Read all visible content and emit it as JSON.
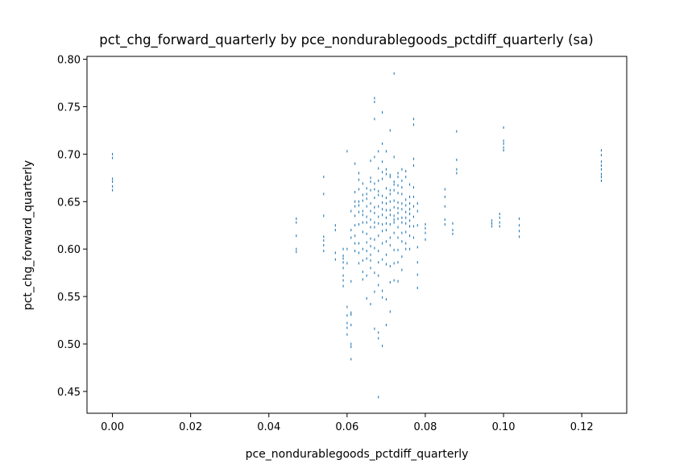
{
  "chart_data": {
    "type": "scatter",
    "title": "pct_chg_forward_quarterly by pce_nondurablegoods_pctdiff_quarterly (sa)",
    "xlabel": "pce_nondurablegoods_pctdiff_quarterly",
    "ylabel": "pct_chg_forward_quarterly",
    "xlim": [
      -0.0065,
      0.1315
    ],
    "ylim": [
      0.427,
      0.803
    ],
    "xticks": [
      0.0,
      0.02,
      0.04,
      0.06,
      0.08,
      0.1,
      0.12
    ],
    "xtick_labels": [
      "0.00",
      "0.02",
      "0.04",
      "0.06",
      "0.08",
      "0.10",
      "0.12"
    ],
    "yticks": [
      0.45,
      0.5,
      0.55,
      0.6,
      0.65,
      0.7,
      0.75,
      0.8
    ],
    "ytick_labels": [
      "0.45",
      "0.50",
      "0.55",
      "0.60",
      "0.65",
      "0.70",
      "0.75",
      "0.80"
    ],
    "grid": false,
    "legend": "none",
    "marker_color": "#1f77b4",
    "points": {
      "x": [
        0.0,
        0.0,
        0.0,
        0.0,
        0.0,
        0.0,
        0.047,
        0.047,
        0.047,
        0.047,
        0.047,
        0.054,
        0.054,
        0.054,
        0.054,
        0.054,
        0.054,
        0.054,
        0.057,
        0.057,
        0.057,
        0.057,
        0.059,
        0.059,
        0.059,
        0.059,
        0.059,
        0.059,
        0.059,
        0.059,
        0.06,
        0.06,
        0.06,
        0.06,
        0.06,
        0.06,
        0.06,
        0.06,
        0.061,
        0.061,
        0.061,
        0.061,
        0.061,
        0.061,
        0.061,
        0.061,
        0.061,
        0.061,
        0.062,
        0.062,
        0.062,
        0.062,
        0.062,
        0.062,
        0.062,
        0.062,
        0.062,
        0.063,
        0.063,
        0.063,
        0.063,
        0.063,
        0.063,
        0.063,
        0.063,
        0.063,
        0.063,
        0.064,
        0.064,
        0.064,
        0.064,
        0.064,
        0.064,
        0.064,
        0.064,
        0.064,
        0.064,
        0.064,
        0.065,
        0.065,
        0.065,
        0.065,
        0.065,
        0.065,
        0.065,
        0.065,
        0.065,
        0.065,
        0.065,
        0.065,
        0.066,
        0.066,
        0.066,
        0.066,
        0.066,
        0.066,
        0.066,
        0.066,
        0.066,
        0.066,
        0.066,
        0.066,
        0.066,
        0.066,
        0.067,
        0.067,
        0.067,
        0.067,
        0.067,
        0.067,
        0.067,
        0.067,
        0.067,
        0.067,
        0.067,
        0.067,
        0.067,
        0.067,
        0.067,
        0.067,
        0.068,
        0.068,
        0.068,
        0.068,
        0.068,
        0.068,
        0.068,
        0.068,
        0.068,
        0.068,
        0.068,
        0.068,
        0.068,
        0.068,
        0.068,
        0.068,
        0.069,
        0.069,
        0.069,
        0.069,
        0.069,
        0.069,
        0.069,
        0.069,
        0.069,
        0.069,
        0.069,
        0.069,
        0.069,
        0.069,
        0.069,
        0.069,
        0.07,
        0.07,
        0.07,
        0.07,
        0.07,
        0.07,
        0.07,
        0.07,
        0.07,
        0.07,
        0.07,
        0.07,
        0.07,
        0.07,
        0.07,
        0.071,
        0.071,
        0.071,
        0.071,
        0.071,
        0.071,
        0.071,
        0.071,
        0.071,
        0.071,
        0.071,
        0.071,
        0.071,
        0.071,
        0.072,
        0.072,
        0.072,
        0.072,
        0.072,
        0.072,
        0.072,
        0.072,
        0.072,
        0.072,
        0.072,
        0.072,
        0.072,
        0.072,
        0.073,
        0.073,
        0.073,
        0.073,
        0.073,
        0.073,
        0.073,
        0.073,
        0.073,
        0.073,
        0.073,
        0.073,
        0.073,
        0.074,
        0.074,
        0.074,
        0.074,
        0.074,
        0.074,
        0.074,
        0.074,
        0.074,
        0.074,
        0.074,
        0.074,
        0.075,
        0.075,
        0.075,
        0.075,
        0.075,
        0.075,
        0.075,
        0.075,
        0.075,
        0.075,
        0.076,
        0.076,
        0.076,
        0.076,
        0.076,
        0.076,
        0.076,
        0.076,
        0.076,
        0.077,
        0.077,
        0.077,
        0.077,
        0.077,
        0.077,
        0.077,
        0.077,
        0.077,
        0.077,
        0.078,
        0.078,
        0.078,
        0.078,
        0.078,
        0.078,
        0.078,
        0.08,
        0.08,
        0.08,
        0.08,
        0.085,
        0.085,
        0.085,
        0.085,
        0.085,
        0.087,
        0.087,
        0.087,
        0.088,
        0.088,
        0.088,
        0.088,
        0.097,
        0.097,
        0.097,
        0.099,
        0.099,
        0.099,
        0.099,
        0.1,
        0.1,
        0.1,
        0.1,
        0.1,
        0.104,
        0.104,
        0.104,
        0.104,
        0.125,
        0.125,
        0.125,
        0.125,
        0.125,
        0.125,
        0.125,
        0.125
      ],
      "y": [
        0.7,
        0.696,
        0.674,
        0.671,
        0.666,
        0.662,
        0.632,
        0.628,
        0.614,
        0.6,
        0.597,
        0.676,
        0.658,
        0.635,
        0.613,
        0.609,
        0.604,
        0.598,
        0.589,
        0.625,
        0.62,
        0.596,
        0.593,
        0.59,
        0.586,
        0.58,
        0.572,
        0.567,
        0.561,
        0.6,
        0.6,
        0.585,
        0.539,
        0.53,
        0.522,
        0.517,
        0.51,
        0.703,
        0.64,
        0.62,
        0.566,
        0.533,
        0.531,
        0.52,
        0.5,
        0.497,
        0.484,
        0.612,
        0.69,
        0.66,
        0.65,
        0.645,
        0.635,
        0.625,
        0.614,
        0.606,
        0.598,
        0.68,
        0.673,
        0.663,
        0.65,
        0.646,
        0.639,
        0.626,
        0.606,
        0.596,
        0.585,
        0.669,
        0.657,
        0.651,
        0.64,
        0.636,
        0.628,
        0.618,
        0.6,
        0.588,
        0.576,
        0.568,
        0.664,
        0.658,
        0.653,
        0.645,
        0.634,
        0.628,
        0.616,
        0.607,
        0.598,
        0.59,
        0.572,
        0.548,
        0.693,
        0.675,
        0.671,
        0.662,
        0.648,
        0.64,
        0.631,
        0.623,
        0.611,
        0.603,
        0.594,
        0.588,
        0.58,
        0.542,
        0.759,
        0.755,
        0.737,
        0.697,
        0.669,
        0.663,
        0.654,
        0.644,
        0.638,
        0.628,
        0.623,
        0.61,
        0.601,
        0.575,
        0.555,
        0.516,
        0.703,
        0.685,
        0.672,
        0.661,
        0.657,
        0.645,
        0.634,
        0.627,
        0.614,
        0.598,
        0.586,
        0.572,
        0.562,
        0.512,
        0.506,
        0.444,
        0.744,
        0.711,
        0.692,
        0.681,
        0.674,
        0.656,
        0.649,
        0.642,
        0.636,
        0.626,
        0.619,
        0.606,
        0.589,
        0.556,
        0.549,
        0.498,
        0.703,
        0.684,
        0.679,
        0.664,
        0.654,
        0.648,
        0.641,
        0.633,
        0.627,
        0.62,
        0.608,
        0.594,
        0.584,
        0.547,
        0.52,
        0.725,
        0.678,
        0.676,
        0.662,
        0.658,
        0.65,
        0.641,
        0.636,
        0.626,
        0.612,
        0.604,
        0.582,
        0.565,
        0.534,
        0.785,
        0.697,
        0.671,
        0.668,
        0.662,
        0.651,
        0.644,
        0.635,
        0.631,
        0.628,
        0.617,
        0.599,
        0.585,
        0.567,
        0.68,
        0.676,
        0.667,
        0.659,
        0.649,
        0.643,
        0.638,
        0.632,
        0.623,
        0.612,
        0.599,
        0.586,
        0.566,
        0.684,
        0.672,
        0.665,
        0.658,
        0.648,
        0.642,
        0.633,
        0.628,
        0.617,
        0.608,
        0.592,
        0.578,
        0.682,
        0.676,
        0.652,
        0.646,
        0.639,
        0.633,
        0.627,
        0.618,
        0.606,
        0.6,
        0.668,
        0.655,
        0.648,
        0.642,
        0.637,
        0.63,
        0.624,
        0.614,
        0.6,
        0.737,
        0.731,
        0.695,
        0.688,
        0.665,
        0.655,
        0.645,
        0.634,
        0.624,
        0.612,
        0.648,
        0.64,
        0.625,
        0.602,
        0.586,
        0.573,
        0.559,
        0.626,
        0.622,
        0.617,
        0.61,
        0.663,
        0.655,
        0.645,
        0.631,
        0.626,
        0.627,
        0.62,
        0.616,
        0.724,
        0.694,
        0.684,
        0.68,
        0.63,
        0.627,
        0.624,
        0.637,
        0.633,
        0.628,
        0.624,
        0.728,
        0.714,
        0.711,
        0.707,
        0.704,
        0.632,
        0.625,
        0.619,
        0.613,
        0.704,
        0.699,
        0.692,
        0.688,
        0.684,
        0.679,
        0.676,
        0.672
      ]
    }
  }
}
